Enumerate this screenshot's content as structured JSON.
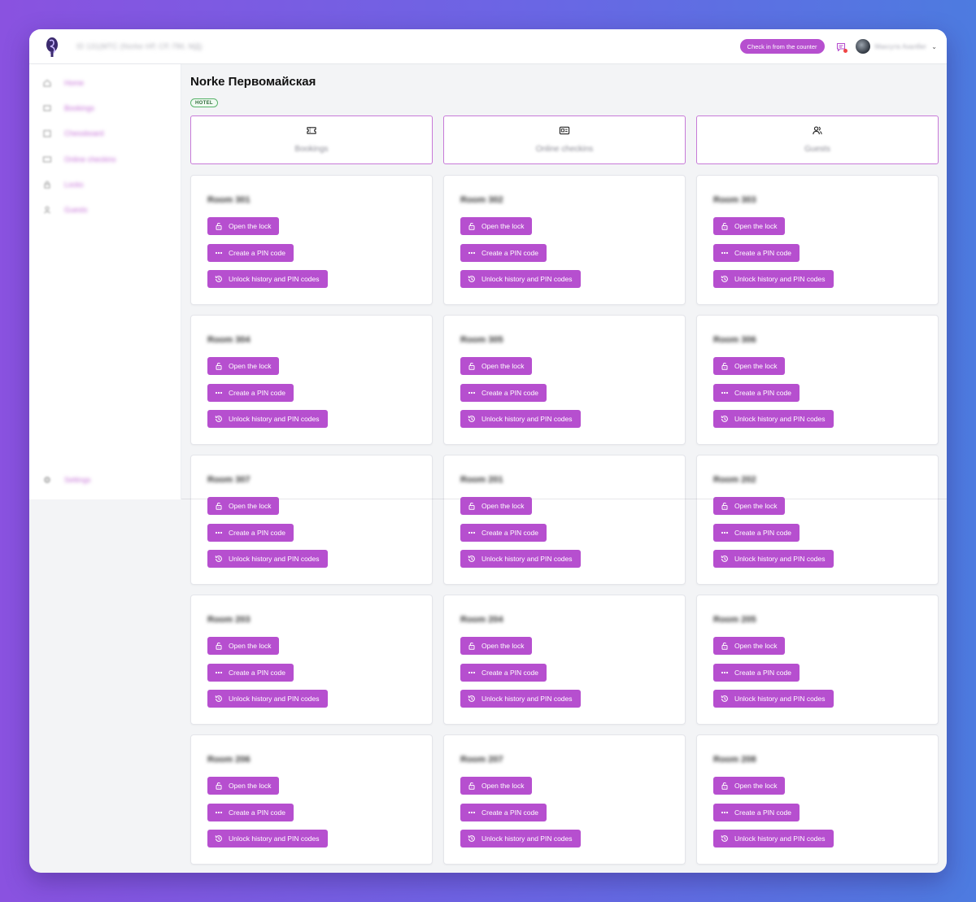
{
  "header": {
    "org_title": "ID 131(МТС (Norke НР, СР, ПМ, МД)",
    "checkin_button": "Check in from the counter",
    "user_name": "Маєсута Ахалбег"
  },
  "sidebar": {
    "items": [
      {
        "label": "Home",
        "icon": "home-icon"
      },
      {
        "label": "Bookings",
        "icon": "ticket-icon"
      },
      {
        "label": "Chessboard",
        "icon": "calendar-icon"
      },
      {
        "label": "Online checkins",
        "icon": "id-card-icon"
      },
      {
        "label": "Locks",
        "icon": "lock-icon"
      },
      {
        "label": "Guests",
        "icon": "user-icon"
      }
    ],
    "settings_label": "Settings"
  },
  "page": {
    "title": "Norke Первомайская",
    "badge": "HOTEL"
  },
  "tabs": [
    {
      "label": "Bookings",
      "icon": "ticket-icon"
    },
    {
      "label": "Online checkins",
      "icon": "id-card-icon"
    },
    {
      "label": "Guests",
      "icon": "users-icon"
    }
  ],
  "actions": {
    "open_lock": "Open the lock",
    "create_pin": "Create a PIN code",
    "unlock_history": "Unlock history and PIN codes"
  },
  "rooms": [
    "Room 301",
    "Room 302",
    "Room 303",
    "Room 304",
    "Room 305",
    "Room 306",
    "Room 307",
    "Room 201",
    "Room 202",
    "Room 203",
    "Room 204",
    "Room 205",
    "Room 206",
    "Room 207",
    "Room 208"
  ],
  "colors": {
    "accent": "#b64fcf",
    "tab_border": "#c77ad8",
    "badge_border": "#58b36a",
    "notification_dot": "#ef4444"
  }
}
